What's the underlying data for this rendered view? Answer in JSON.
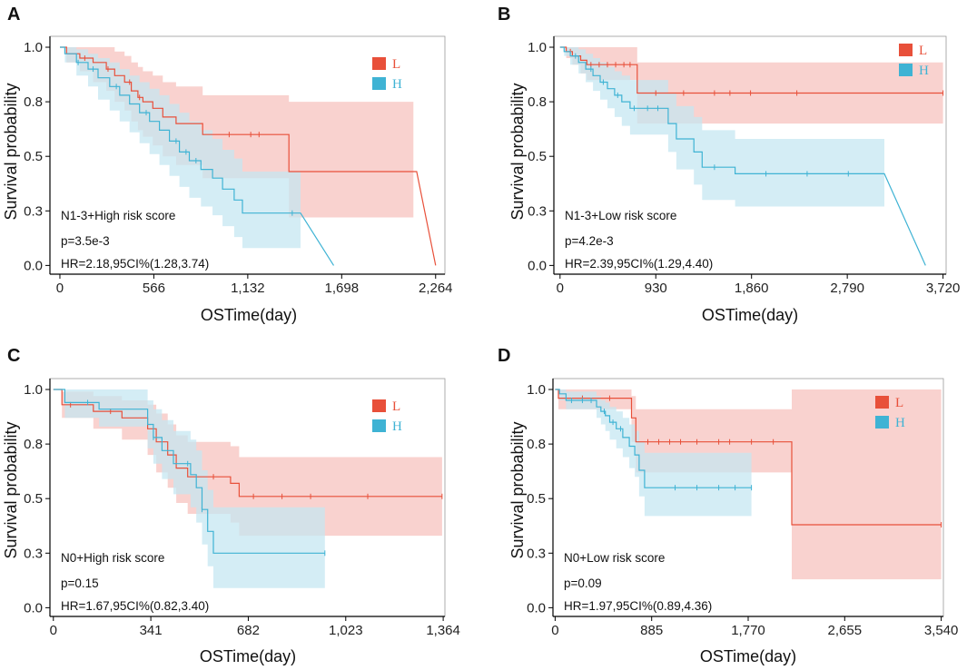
{
  "figure": {
    "colors": {
      "L": "#e8503a",
      "H": "#3fb3d4",
      "L_band": "#f7c1bd",
      "H_band": "#c3e6f1",
      "axis": "#000000"
    }
  },
  "chart_data": [
    {
      "type": "line",
      "subtype": "kaplan-meier",
      "panel": "A",
      "xlabel": "OSTime(day)",
      "ylabel": "Survival probability",
      "xlim": [
        -60,
        2320
      ],
      "ylim": [
        -0.04,
        1.05
      ],
      "xticks": [
        0,
        566,
        1132,
        1698,
        2264
      ],
      "xtick_labels": [
        "0",
        "566",
        "1,132",
        "1,698",
        "2,264"
      ],
      "yticks": [
        0.0,
        0.25,
        0.5,
        0.75,
        1.0
      ],
      "ytick_labels": [
        "0.0",
        "0.3",
        "0.5",
        "0.8",
        "1.0"
      ],
      "legend": [
        {
          "label": "L",
          "series": "L"
        },
        {
          "label": "H",
          "series": "H"
        }
      ],
      "legend_position": "top-right",
      "annotations": [
        "N1-3+High risk score",
        "p=3.5e-3",
        "HR=2.18,95CI%(1.28,3.74)"
      ],
      "series": [
        {
          "name": "L",
          "x": [
            0,
            40,
            120,
            200,
            280,
            330,
            390,
            430,
            470,
            500,
            560,
            620,
            700,
            860,
            1030,
            1300,
            1380,
            2150,
            2264
          ],
          "y": [
            1.0,
            0.97,
            0.95,
            0.93,
            0.9,
            0.87,
            0.84,
            0.8,
            0.77,
            0.75,
            0.72,
            0.68,
            0.65,
            0.6,
            0.6,
            0.6,
            0.43,
            0.43,
            0.0
          ],
          "lower": [
            1.0,
            0.93,
            0.89,
            0.84,
            0.8,
            0.75,
            0.71,
            0.66,
            0.62,
            0.59,
            0.55,
            0.5,
            0.46,
            0.4,
            0.4,
            0.4,
            0.22,
            0.22,
            0.22
          ],
          "upper": [
            1.0,
            1.0,
            1.0,
            1.0,
            1.0,
            0.98,
            0.96,
            0.93,
            0.91,
            0.89,
            0.87,
            0.84,
            0.82,
            0.78,
            0.78,
            0.78,
            0.75,
            0.75,
            0.75
          ],
          "band_end": 2130,
          "censor_x": [
            150,
            290,
            420,
            480,
            1020,
            1150,
            1200
          ]
        },
        {
          "name": "H",
          "x": [
            0,
            30,
            100,
            170,
            230,
            300,
            360,
            420,
            480,
            540,
            600,
            660,
            720,
            780,
            850,
            920,
            980,
            1050,
            1100,
            1450,
            1650
          ],
          "y": [
            1.0,
            0.97,
            0.93,
            0.9,
            0.86,
            0.82,
            0.78,
            0.74,
            0.7,
            0.66,
            0.62,
            0.57,
            0.52,
            0.48,
            0.44,
            0.4,
            0.35,
            0.3,
            0.24,
            0.24,
            0.0
          ],
          "lower": [
            1.0,
            0.93,
            0.87,
            0.82,
            0.76,
            0.71,
            0.66,
            0.61,
            0.56,
            0.51,
            0.46,
            0.41,
            0.36,
            0.31,
            0.27,
            0.23,
            0.18,
            0.13,
            0.08,
            0.08,
            0.08
          ],
          "upper": [
            1.0,
            1.0,
            0.99,
            0.97,
            0.95,
            0.93,
            0.9,
            0.87,
            0.84,
            0.81,
            0.78,
            0.74,
            0.7,
            0.66,
            0.62,
            0.58,
            0.53,
            0.49,
            0.43,
            0.43,
            0.43
          ],
          "band_end": 1450,
          "censor_x": [
            110,
            200,
            340,
            520,
            700,
            760,
            820,
            1400
          ]
        }
      ]
    },
    {
      "type": "line",
      "subtype": "kaplan-meier",
      "panel": "B",
      "xlabel": "OSTime(day)",
      "ylabel": "Survival probability",
      "xlim": [
        -60,
        3750
      ],
      "ylim": [
        -0.04,
        1.05
      ],
      "xticks": [
        0,
        930,
        1860,
        2790,
        3720
      ],
      "xtick_labels": [
        "0",
        "930",
        "1,860",
        "2,790",
        "3,720"
      ],
      "yticks": [
        0.0,
        0.25,
        0.5,
        0.75,
        1.0
      ],
      "ytick_labels": [
        "0.0",
        "0.3",
        "0.5",
        "0.8",
        "1.0"
      ],
      "legend": [
        {
          "label": "L",
          "series": "L"
        },
        {
          "label": "H",
          "series": "H"
        }
      ],
      "legend_position": "top-right",
      "annotations": [
        "N1-3+Low risk score",
        "p=4.2e-3",
        "HR=2.39,95CI%(1.29,4.40)"
      ],
      "series": [
        {
          "name": "L",
          "x": [
            0,
            60,
            120,
            200,
            260,
            700,
            750,
            3720
          ],
          "y": [
            1.0,
            0.98,
            0.96,
            0.94,
            0.92,
            0.92,
            0.79,
            0.79
          ],
          "lower": [
            1.0,
            0.95,
            0.92,
            0.88,
            0.85,
            0.85,
            0.65,
            0.65
          ],
          "upper": [
            1.0,
            1.0,
            1.0,
            1.0,
            1.0,
            1.0,
            0.93,
            0.93
          ],
          "band_end": 3720,
          "censor_x": [
            100,
            300,
            380,
            460,
            540,
            620,
            680,
            930,
            1200,
            1500,
            1650,
            1850,
            2300,
            3720
          ]
        },
        {
          "name": "H",
          "x": [
            0,
            40,
            100,
            180,
            250,
            320,
            390,
            460,
            530,
            600,
            680,
            1050,
            1130,
            1300,
            1380,
            1700,
            3150,
            3550
          ],
          "y": [
            1.0,
            0.98,
            0.96,
            0.93,
            0.9,
            0.87,
            0.84,
            0.81,
            0.78,
            0.75,
            0.72,
            0.65,
            0.58,
            0.52,
            0.45,
            0.42,
            0.42,
            0.0
          ],
          "lower": [
            1.0,
            0.96,
            0.92,
            0.88,
            0.84,
            0.8,
            0.76,
            0.72,
            0.68,
            0.64,
            0.6,
            0.52,
            0.44,
            0.37,
            0.3,
            0.27,
            0.27,
            0.27
          ],
          "upper": [
            1.0,
            1.0,
            1.0,
            0.99,
            0.97,
            0.95,
            0.93,
            0.91,
            0.89,
            0.87,
            0.85,
            0.79,
            0.73,
            0.68,
            0.62,
            0.58,
            0.58,
            0.58
          ],
          "band_end": 3150,
          "censor_x": [
            150,
            300,
            420,
            560,
            720,
            850,
            950,
            1500,
            2000,
            2400,
            2800
          ]
        }
      ]
    },
    {
      "type": "line",
      "subtype": "kaplan-meier",
      "panel": "C",
      "xlabel": "OSTime(day)",
      "ylabel": "Survival probability",
      "xlim": [
        -12,
        1370
      ],
      "ylim": [
        -0.04,
        1.05
      ],
      "xticks": [
        0,
        341,
        682,
        1023,
        1364
      ],
      "xtick_labels": [
        "0",
        "341",
        "682",
        "1,023",
        "1,364"
      ],
      "yticks": [
        0.0,
        0.25,
        0.5,
        0.75,
        1.0
      ],
      "ytick_labels": [
        "0.0",
        "0.3",
        "0.5",
        "0.8",
        "1.0"
      ],
      "legend": [
        {
          "label": "L",
          "series": "L"
        },
        {
          "label": "H",
          "series": "H"
        }
      ],
      "legend_position": "top-right",
      "annotations": [
        "N0+High risk score",
        "p=0.15",
        "HR=1.67,95CI%(0.82,3.40)"
      ],
      "series": [
        {
          "name": "L",
          "x": [
            0,
            30,
            140,
            240,
            330,
            360,
            400,
            430,
            470,
            620,
            650,
            1360
          ],
          "y": [
            1.0,
            0.93,
            0.9,
            0.87,
            0.82,
            0.76,
            0.7,
            0.64,
            0.6,
            0.57,
            0.51,
            0.51
          ],
          "lower": [
            1.0,
            0.87,
            0.82,
            0.77,
            0.7,
            0.62,
            0.55,
            0.48,
            0.43,
            0.39,
            0.33,
            0.33
          ],
          "upper": [
            1.0,
            0.99,
            0.97,
            0.95,
            0.93,
            0.89,
            0.84,
            0.79,
            0.76,
            0.74,
            0.69,
            0.69
          ],
          "band_end": 1360,
          "censor_x": [
            60,
            200,
            420,
            560,
            700,
            800,
            900,
            1100,
            1360
          ]
        },
        {
          "name": "H",
          "x": [
            0,
            40,
            160,
            330,
            350,
            380,
            420,
            480,
            500,
            520,
            540,
            560,
            950
          ],
          "y": [
            1.0,
            0.94,
            0.91,
            0.84,
            0.78,
            0.72,
            0.66,
            0.61,
            0.55,
            0.45,
            0.35,
            0.25,
            0.25
          ],
          "lower": [
            1.0,
            0.87,
            0.83,
            0.73,
            0.66,
            0.59,
            0.52,
            0.46,
            0.39,
            0.29,
            0.19,
            0.09,
            0.09
          ],
          "upper": [
            1.0,
            1.0,
            1.0,
            0.95,
            0.91,
            0.86,
            0.81,
            0.77,
            0.72,
            0.63,
            0.54,
            0.46,
            0.46
          ],
          "band_end": 950,
          "censor_x": [
            120,
            350,
            470,
            520,
            950
          ]
        }
      ]
    },
    {
      "type": "line",
      "subtype": "kaplan-meier",
      "panel": "D",
      "xlabel": "OSTime(day)",
      "ylabel": "Survival probability",
      "xlim": [
        -20,
        3560
      ],
      "ylim": [
        -0.04,
        1.05
      ],
      "xticks": [
        0,
        885,
        1770,
        2655,
        3540
      ],
      "xtick_labels": [
        "0",
        "885",
        "1,770",
        "2,655",
        "3,540"
      ],
      "yticks": [
        0.0,
        0.25,
        0.5,
        0.75,
        1.0
      ],
      "ytick_labels": [
        "0.0",
        "0.3",
        "0.5",
        "0.8",
        "1.0"
      ],
      "legend": [
        {
          "label": "L",
          "series": "L"
        },
        {
          "label": "H",
          "series": "H"
        }
      ],
      "legend_position": "top-right",
      "annotations": [
        "N0+Low risk score",
        "p=0.09",
        "HR=1.97,95CI%(0.89,4.36)"
      ],
      "series": [
        {
          "name": "L",
          "x": [
            0,
            30,
            650,
            700,
            740,
            2050,
            2170,
            3540
          ],
          "y": [
            1.0,
            0.96,
            0.96,
            0.87,
            0.76,
            0.76,
            0.38,
            0.38
          ],
          "lower": [
            1.0,
            0.91,
            0.91,
            0.76,
            0.62,
            0.62,
            0.13,
            0.13
          ],
          "upper": [
            1.0,
            1.0,
            1.0,
            0.97,
            0.91,
            0.91,
            1.0,
            1.0
          ],
          "band_end": 3540,
          "censor_x": [
            250,
            500,
            850,
            950,
            1050,
            1150,
            1300,
            1500,
            1600,
            1800,
            2000,
            3540
          ]
        },
        {
          "name": "H",
          "x": [
            0,
            40,
            100,
            380,
            420,
            460,
            500,
            560,
            620,
            680,
            730,
            770,
            820,
            1800
          ],
          "y": [
            1.0,
            0.98,
            0.95,
            0.92,
            0.9,
            0.88,
            0.85,
            0.82,
            0.78,
            0.74,
            0.7,
            0.63,
            0.55,
            0.55
          ],
          "lower": [
            1.0,
            0.95,
            0.91,
            0.87,
            0.84,
            0.81,
            0.77,
            0.73,
            0.69,
            0.64,
            0.6,
            0.51,
            0.42,
            0.42
          ],
          "upper": [
            1.0,
            1.0,
            0.99,
            0.97,
            0.95,
            0.94,
            0.92,
            0.9,
            0.87,
            0.84,
            0.81,
            0.76,
            0.71,
            0.71
          ],
          "band_end": 1800,
          "censor_x": [
            150,
            250,
            330,
            450,
            530,
            600,
            1100,
            1300,
            1500,
            1650,
            1800
          ]
        }
      ]
    }
  ]
}
